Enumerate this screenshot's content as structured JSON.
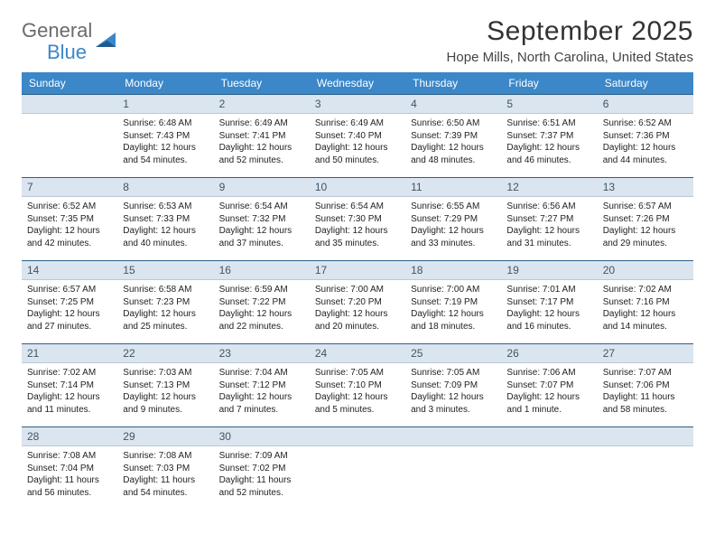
{
  "logo": {
    "word1": "General",
    "word2": "Blue"
  },
  "title": "September 2025",
  "location": "Hope Mills, North Carolina, United States",
  "colors": {
    "header_bg": "#3b87c8",
    "daybar_bg": "#dbe5ef",
    "daybar_border_top": "#2e5f8a",
    "page_bg": "#ffffff",
    "text": "#222222"
  },
  "weekdays": [
    "Sunday",
    "Monday",
    "Tuesday",
    "Wednesday",
    "Thursday",
    "Friday",
    "Saturday"
  ],
  "leading_blanks": 1,
  "days": [
    {
      "n": "1",
      "sunrise": "6:48 AM",
      "sunset": "7:43 PM",
      "daylight": "12 hours and 54 minutes."
    },
    {
      "n": "2",
      "sunrise": "6:49 AM",
      "sunset": "7:41 PM",
      "daylight": "12 hours and 52 minutes."
    },
    {
      "n": "3",
      "sunrise": "6:49 AM",
      "sunset": "7:40 PM",
      "daylight": "12 hours and 50 minutes."
    },
    {
      "n": "4",
      "sunrise": "6:50 AM",
      "sunset": "7:39 PM",
      "daylight": "12 hours and 48 minutes."
    },
    {
      "n": "5",
      "sunrise": "6:51 AM",
      "sunset": "7:37 PM",
      "daylight": "12 hours and 46 minutes."
    },
    {
      "n": "6",
      "sunrise": "6:52 AM",
      "sunset": "7:36 PM",
      "daylight": "12 hours and 44 minutes."
    },
    {
      "n": "7",
      "sunrise": "6:52 AM",
      "sunset": "7:35 PM",
      "daylight": "12 hours and 42 minutes."
    },
    {
      "n": "8",
      "sunrise": "6:53 AM",
      "sunset": "7:33 PM",
      "daylight": "12 hours and 40 minutes."
    },
    {
      "n": "9",
      "sunrise": "6:54 AM",
      "sunset": "7:32 PM",
      "daylight": "12 hours and 37 minutes."
    },
    {
      "n": "10",
      "sunrise": "6:54 AM",
      "sunset": "7:30 PM",
      "daylight": "12 hours and 35 minutes."
    },
    {
      "n": "11",
      "sunrise": "6:55 AM",
      "sunset": "7:29 PM",
      "daylight": "12 hours and 33 minutes."
    },
    {
      "n": "12",
      "sunrise": "6:56 AM",
      "sunset": "7:27 PM",
      "daylight": "12 hours and 31 minutes."
    },
    {
      "n": "13",
      "sunrise": "6:57 AM",
      "sunset": "7:26 PM",
      "daylight": "12 hours and 29 minutes."
    },
    {
      "n": "14",
      "sunrise": "6:57 AM",
      "sunset": "7:25 PM",
      "daylight": "12 hours and 27 minutes."
    },
    {
      "n": "15",
      "sunrise": "6:58 AM",
      "sunset": "7:23 PM",
      "daylight": "12 hours and 25 minutes."
    },
    {
      "n": "16",
      "sunrise": "6:59 AM",
      "sunset": "7:22 PM",
      "daylight": "12 hours and 22 minutes."
    },
    {
      "n": "17",
      "sunrise": "7:00 AM",
      "sunset": "7:20 PM",
      "daylight": "12 hours and 20 minutes."
    },
    {
      "n": "18",
      "sunrise": "7:00 AM",
      "sunset": "7:19 PM",
      "daylight": "12 hours and 18 minutes."
    },
    {
      "n": "19",
      "sunrise": "7:01 AM",
      "sunset": "7:17 PM",
      "daylight": "12 hours and 16 minutes."
    },
    {
      "n": "20",
      "sunrise": "7:02 AM",
      "sunset": "7:16 PM",
      "daylight": "12 hours and 14 minutes."
    },
    {
      "n": "21",
      "sunrise": "7:02 AM",
      "sunset": "7:14 PM",
      "daylight": "12 hours and 11 minutes."
    },
    {
      "n": "22",
      "sunrise": "7:03 AM",
      "sunset": "7:13 PM",
      "daylight": "12 hours and 9 minutes."
    },
    {
      "n": "23",
      "sunrise": "7:04 AM",
      "sunset": "7:12 PM",
      "daylight": "12 hours and 7 minutes."
    },
    {
      "n": "24",
      "sunrise": "7:05 AM",
      "sunset": "7:10 PM",
      "daylight": "12 hours and 5 minutes."
    },
    {
      "n": "25",
      "sunrise": "7:05 AM",
      "sunset": "7:09 PM",
      "daylight": "12 hours and 3 minutes."
    },
    {
      "n": "26",
      "sunrise": "7:06 AM",
      "sunset": "7:07 PM",
      "daylight": "12 hours and 1 minute."
    },
    {
      "n": "27",
      "sunrise": "7:07 AM",
      "sunset": "7:06 PM",
      "daylight": "11 hours and 58 minutes."
    },
    {
      "n": "28",
      "sunrise": "7:08 AM",
      "sunset": "7:04 PM",
      "daylight": "11 hours and 56 minutes."
    },
    {
      "n": "29",
      "sunrise": "7:08 AM",
      "sunset": "7:03 PM",
      "daylight": "11 hours and 54 minutes."
    },
    {
      "n": "30",
      "sunrise": "7:09 AM",
      "sunset": "7:02 PM",
      "daylight": "11 hours and 52 minutes."
    }
  ],
  "labels": {
    "sunrise_prefix": "Sunrise: ",
    "sunset_prefix": "Sunset: ",
    "daylight_prefix": "Daylight: "
  }
}
